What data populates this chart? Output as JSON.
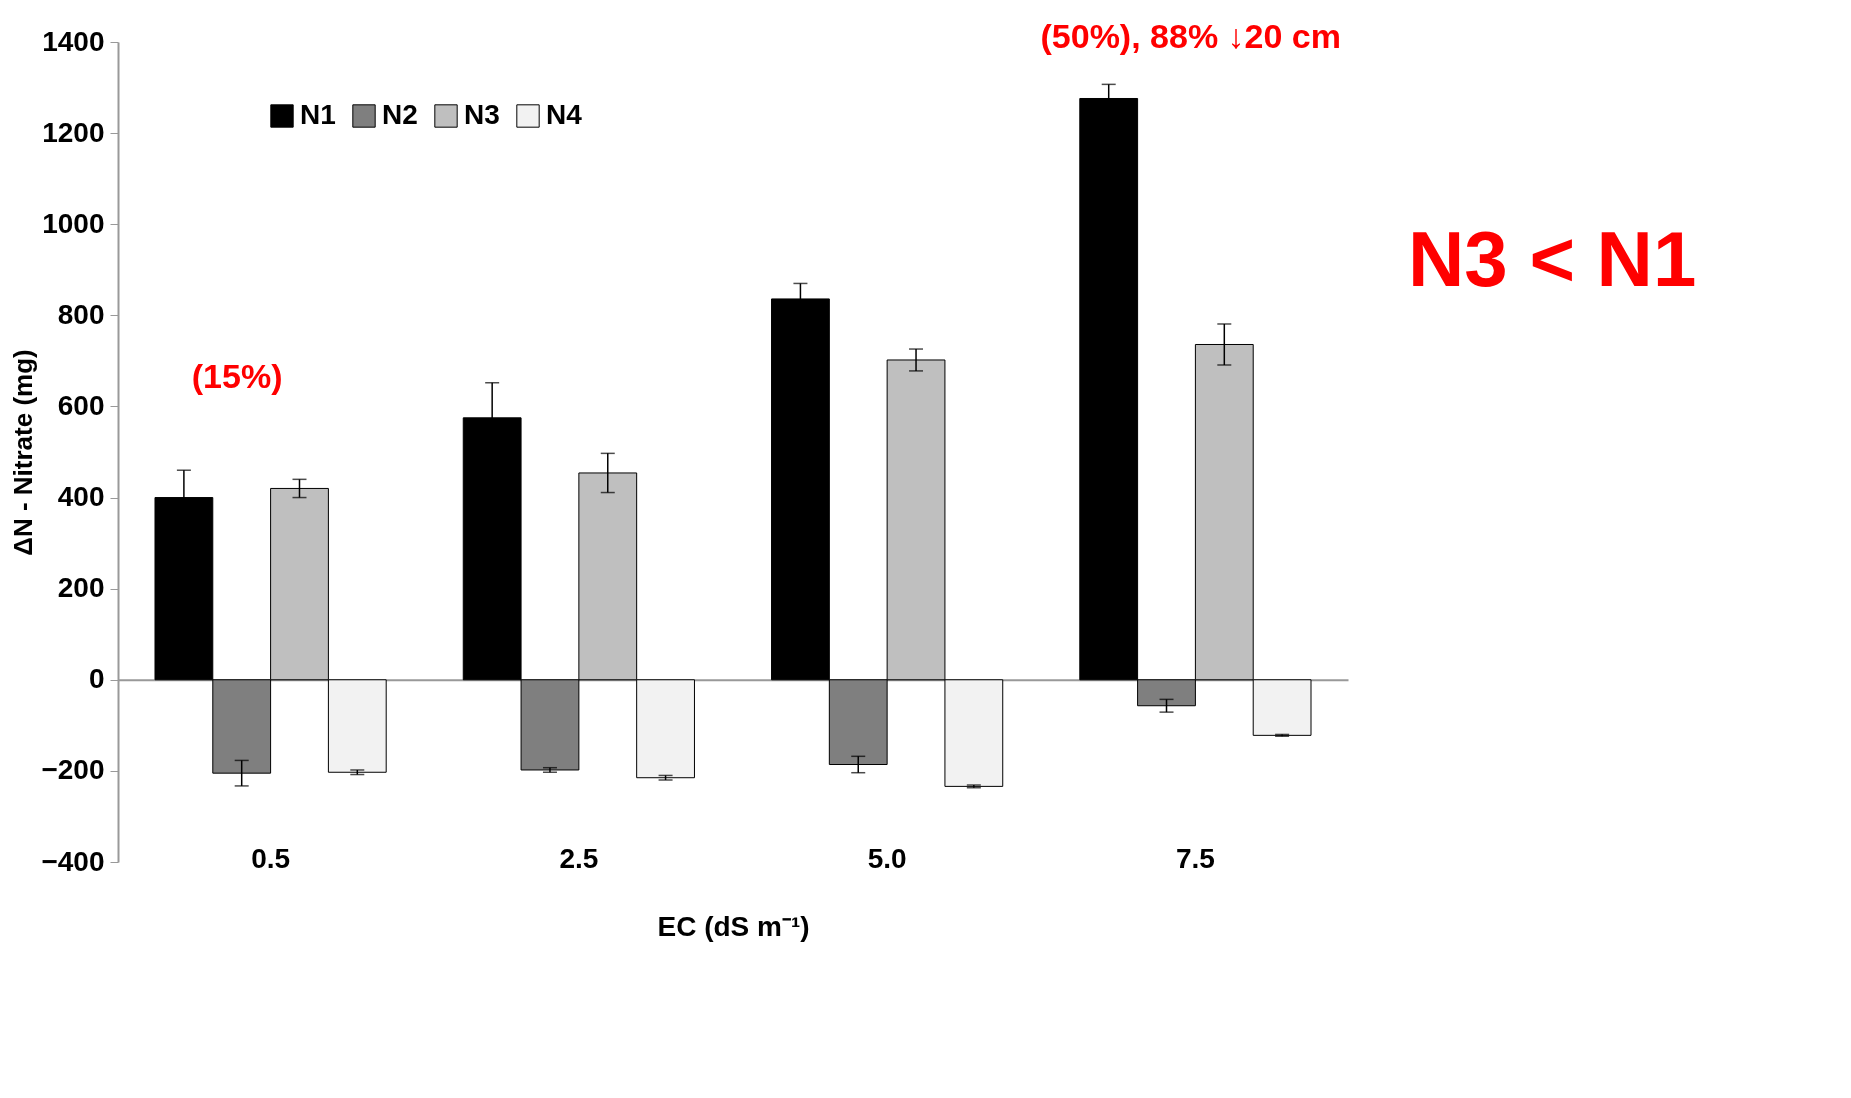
{
  "chart_data": {
    "type": "bar",
    "xlabel": "EC (dS m⁻¹)",
    "ylabel": "ΔN - Nitrate (mg)",
    "categories": [
      "0.5",
      "2.5",
      "5.0",
      "7.5"
    ],
    "series": [
      {
        "name": "N1",
        "color": "#000000",
        "values": [
          400,
          575,
          836,
          1276
        ],
        "errors": [
          60,
          77,
          34,
          31
        ]
      },
      {
        "name": "N2",
        "color": "#7f7f7f",
        "values": [
          -205,
          -198,
          -186,
          -57
        ],
        "errors": [
          28,
          5,
          18,
          14
        ]
      },
      {
        "name": "N3",
        "color": "#bfbfbf",
        "values": [
          420,
          454,
          702,
          736
        ],
        "errors": [
          20,
          43,
          24,
          45
        ]
      },
      {
        "name": "N4",
        "color": "#f2f2f2",
        "values": [
          -203,
          -215,
          -234,
          -122
        ],
        "errors": [
          5,
          5,
          3,
          2
        ]
      }
    ],
    "ylim": [
      -400,
      1400
    ],
    "yticks": [
      -400,
      -200,
      0,
      200,
      400,
      600,
      800,
      1000,
      1200,
      1400
    ],
    "legend": "top left",
    "annotations": [
      "(15%)",
      "(50%), 88% ↓20 cm",
      "N3 < N1"
    ]
  }
}
